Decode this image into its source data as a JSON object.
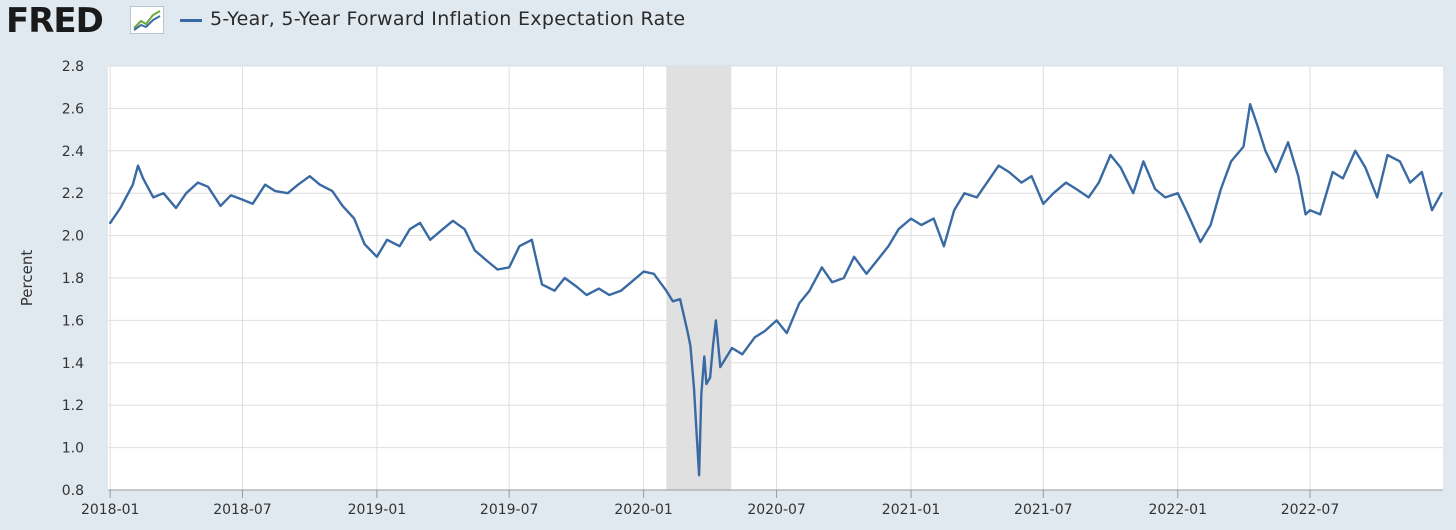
{
  "header": {
    "logo_text": "FRED",
    "logo_mark": "registered-mark",
    "series_label": "5-Year, 5-Year Forward Inflation Expectation Rate"
  },
  "colors": {
    "line": "#3a6aa3",
    "recession": "#e0e0e0",
    "grid": "#dedede",
    "background": "#e1e9f0",
    "plot_background": "#ffffff"
  },
  "chart_data": {
    "type": "line",
    "title": "",
    "xlabel": "",
    "ylabel": "Percent",
    "ylim": [
      0.8,
      2.8
    ],
    "xlim": [
      "2017-12-29",
      "2022-12-30"
    ],
    "y_ticks": [
      "0.8",
      "1.0",
      "1.2",
      "1.4",
      "1.6",
      "1.8",
      "2.0",
      "2.2",
      "2.4",
      "2.6",
      "2.8"
    ],
    "x_ticks": [
      "2018-01",
      "2018-07",
      "2019-01",
      "2019-07",
      "2020-01",
      "2020-07",
      "2021-01",
      "2021-07",
      "2022-01",
      "2022-07"
    ],
    "grid": true,
    "legend": "top-left",
    "recession_shading": [
      {
        "start": "2020-02-01",
        "end": "2020-04-30"
      }
    ],
    "series": [
      {
        "name": "5-Year, 5-Year Forward Inflation Expectation Rate",
        "points": [
          [
            "2018-01-01",
            2.06
          ],
          [
            "2018-01-15",
            2.13
          ],
          [
            "2018-02-01",
            2.24
          ],
          [
            "2018-02-08",
            2.33
          ],
          [
            "2018-02-15",
            2.27
          ],
          [
            "2018-03-01",
            2.18
          ],
          [
            "2018-03-15",
            2.2
          ],
          [
            "2018-04-01",
            2.13
          ],
          [
            "2018-04-15",
            2.2
          ],
          [
            "2018-05-01",
            2.25
          ],
          [
            "2018-05-15",
            2.23
          ],
          [
            "2018-06-01",
            2.14
          ],
          [
            "2018-06-15",
            2.19
          ],
          [
            "2018-07-01",
            2.17
          ],
          [
            "2018-07-15",
            2.15
          ],
          [
            "2018-08-01",
            2.24
          ],
          [
            "2018-08-15",
            2.21
          ],
          [
            "2018-09-01",
            2.2
          ],
          [
            "2018-09-15",
            2.24
          ],
          [
            "2018-10-01",
            2.28
          ],
          [
            "2018-10-15",
            2.24
          ],
          [
            "2018-11-01",
            2.21
          ],
          [
            "2018-11-15",
            2.14
          ],
          [
            "2018-12-01",
            2.08
          ],
          [
            "2018-12-15",
            1.96
          ],
          [
            "2019-01-01",
            1.9
          ],
          [
            "2019-01-15",
            1.98
          ],
          [
            "2019-02-01",
            1.95
          ],
          [
            "2019-02-15",
            2.03
          ],
          [
            "2019-03-01",
            2.06
          ],
          [
            "2019-03-15",
            1.98
          ],
          [
            "2019-04-01",
            2.03
          ],
          [
            "2019-04-15",
            2.07
          ],
          [
            "2019-05-01",
            2.03
          ],
          [
            "2019-05-15",
            1.93
          ],
          [
            "2019-06-01",
            1.88
          ],
          [
            "2019-06-15",
            1.84
          ],
          [
            "2019-07-01",
            1.85
          ],
          [
            "2019-07-15",
            1.95
          ],
          [
            "2019-08-01",
            1.98
          ],
          [
            "2019-08-15",
            1.77
          ],
          [
            "2019-09-01",
            1.74
          ],
          [
            "2019-09-15",
            1.8
          ],
          [
            "2019-10-01",
            1.76
          ],
          [
            "2019-10-15",
            1.72
          ],
          [
            "2019-11-01",
            1.75
          ],
          [
            "2019-11-15",
            1.72
          ],
          [
            "2019-12-01",
            1.74
          ],
          [
            "2019-12-15",
            1.78
          ],
          [
            "2020-01-01",
            1.83
          ],
          [
            "2020-01-15",
            1.82
          ],
          [
            "2020-02-01",
            1.74
          ],
          [
            "2020-02-10",
            1.69
          ],
          [
            "2020-02-20",
            1.7
          ],
          [
            "2020-03-01",
            1.55
          ],
          [
            "2020-03-05",
            1.48
          ],
          [
            "2020-03-10",
            1.28
          ],
          [
            "2020-03-13",
            1.1
          ],
          [
            "2020-03-17",
            0.87
          ],
          [
            "2020-03-20",
            1.25
          ],
          [
            "2020-03-24",
            1.43
          ],
          [
            "2020-03-27",
            1.3
          ],
          [
            "2020-04-01",
            1.33
          ],
          [
            "2020-04-05",
            1.48
          ],
          [
            "2020-04-09",
            1.6
          ],
          [
            "2020-04-15",
            1.38
          ],
          [
            "2020-05-01",
            1.47
          ],
          [
            "2020-05-15",
            1.44
          ],
          [
            "2020-06-01",
            1.52
          ],
          [
            "2020-06-15",
            1.55
          ],
          [
            "2020-07-01",
            1.6
          ],
          [
            "2020-07-15",
            1.54
          ],
          [
            "2020-08-01",
            1.68
          ],
          [
            "2020-08-15",
            1.74
          ],
          [
            "2020-09-01",
            1.85
          ],
          [
            "2020-09-15",
            1.78
          ],
          [
            "2020-10-01",
            1.8
          ],
          [
            "2020-10-15",
            1.9
          ],
          [
            "2020-11-01",
            1.82
          ],
          [
            "2020-11-15",
            1.88
          ],
          [
            "2020-12-01",
            1.95
          ],
          [
            "2020-12-15",
            2.03
          ],
          [
            "2021-01-01",
            2.08
          ],
          [
            "2021-01-15",
            2.05
          ],
          [
            "2021-02-01",
            2.08
          ],
          [
            "2021-02-15",
            1.95
          ],
          [
            "2021-03-01",
            2.12
          ],
          [
            "2021-03-15",
            2.2
          ],
          [
            "2021-04-01",
            2.18
          ],
          [
            "2021-04-15",
            2.25
          ],
          [
            "2021-05-01",
            2.33
          ],
          [
            "2021-05-15",
            2.3
          ],
          [
            "2021-06-01",
            2.25
          ],
          [
            "2021-06-15",
            2.28
          ],
          [
            "2021-07-01",
            2.15
          ],
          [
            "2021-07-15",
            2.2
          ],
          [
            "2021-08-01",
            2.25
          ],
          [
            "2021-08-15",
            2.22
          ],
          [
            "2021-09-01",
            2.18
          ],
          [
            "2021-09-15",
            2.25
          ],
          [
            "2021-10-01",
            2.38
          ],
          [
            "2021-10-15",
            2.32
          ],
          [
            "2021-11-01",
            2.2
          ],
          [
            "2021-11-15",
            2.35
          ],
          [
            "2021-12-01",
            2.22
          ],
          [
            "2021-12-15",
            2.18
          ],
          [
            "2022-01-01",
            2.2
          ],
          [
            "2022-01-15",
            2.1
          ],
          [
            "2022-02-01",
            1.97
          ],
          [
            "2022-02-15",
            2.05
          ],
          [
            "2022-03-01",
            2.22
          ],
          [
            "2022-03-15",
            2.35
          ],
          [
            "2022-04-01",
            2.42
          ],
          [
            "2022-04-10",
            2.62
          ],
          [
            "2022-04-20",
            2.52
          ],
          [
            "2022-05-01",
            2.4
          ],
          [
            "2022-05-15",
            2.3
          ],
          [
            "2022-06-01",
            2.44
          ],
          [
            "2022-06-15",
            2.28
          ],
          [
            "2022-06-25",
            2.1
          ],
          [
            "2022-07-01",
            2.12
          ],
          [
            "2022-07-15",
            2.1
          ],
          [
            "2022-08-01",
            2.3
          ],
          [
            "2022-08-15",
            2.27
          ],
          [
            "2022-09-01",
            2.4
          ],
          [
            "2022-09-15",
            2.32
          ],
          [
            "2022-10-01",
            2.18
          ],
          [
            "2022-10-15",
            2.38
          ],
          [
            "2022-11-01",
            2.35
          ],
          [
            "2022-11-15",
            2.25
          ],
          [
            "2022-12-01",
            2.3
          ],
          [
            "2022-12-15",
            2.12
          ],
          [
            "2022-12-28",
            2.2
          ]
        ]
      }
    ]
  }
}
